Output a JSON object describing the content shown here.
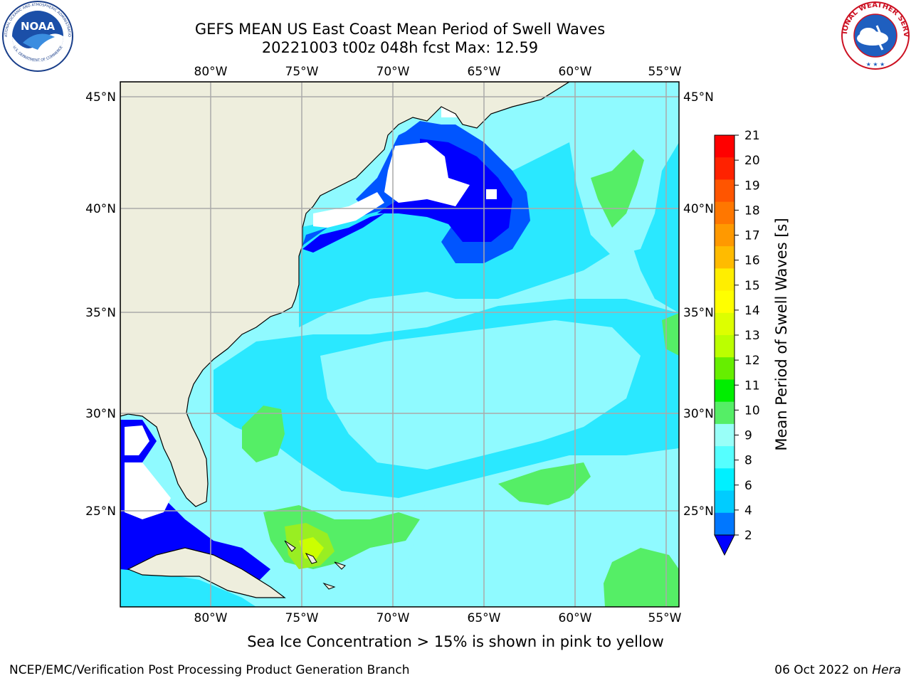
{
  "header": {
    "title_line1": "GEFS MEAN US East Coast Mean Period of Swell Waves",
    "title_line2": "20221003 t00z 048h fcst   Max: 12.59"
  },
  "logos": {
    "left": "noaa-logo",
    "left_text": [
      "NATIONAL OCEANIC AND ATMOSPHERIC ADMINISTRATION",
      "U.S. DEPARTMENT OF COMMERCE",
      "NOAA"
    ],
    "right": "nws-logo",
    "right_text": [
      "NATIONAL WEATHER SERVICE"
    ]
  },
  "map": {
    "lon_labels": [
      "80°W",
      "75°W",
      "70°W",
      "65°W",
      "60°W",
      "55°W"
    ],
    "lat_labels": [
      "45°N",
      "40°N",
      "35°N",
      "30°N",
      "25°N"
    ],
    "lon_range": [
      -85,
      -54
    ],
    "lat_range": [
      20.5,
      46.5
    ],
    "colors": {
      "land": "#eeeedd",
      "ocean_base": "#8ffaff",
      "cyan": "#2ae8ff",
      "light_cyan": "#8ffaff",
      "blue": "#0055ff",
      "dark_blue": "#0000ff",
      "green": "#55ee66",
      "yellow_green": "#99ee22",
      "grid": "#aaaaaa"
    }
  },
  "colorbar": {
    "label": "Mean Period of Swell Waves [s]",
    "ticks": [
      "21",
      "20",
      "19",
      "18",
      "17",
      "16",
      "15",
      "14",
      "13",
      "12",
      "11",
      "10",
      "9",
      "8",
      "6",
      "4",
      "2"
    ],
    "colors": [
      "#ff0000",
      "#ff2200",
      "#ff5500",
      "#ff7700",
      "#ff9900",
      "#ffbb00",
      "#ffee00",
      "#ffff00",
      "#ddff00",
      "#bbff00",
      "#66ee00",
      "#00ee00",
      "#55ee66",
      "#99fff8",
      "#55ffff",
      "#00f0ff",
      "#00ccff",
      "#0077ff",
      "#0000ff"
    ]
  },
  "footer": {
    "subcaption": "Sea Ice Concentration > 15% is shown in pink to yellow",
    "credit": "NCEP/EMC/Verification Post Processing Product Generation Branch",
    "date_prefix": "06 Oct 2022 on ",
    "date_host": "Hera"
  }
}
